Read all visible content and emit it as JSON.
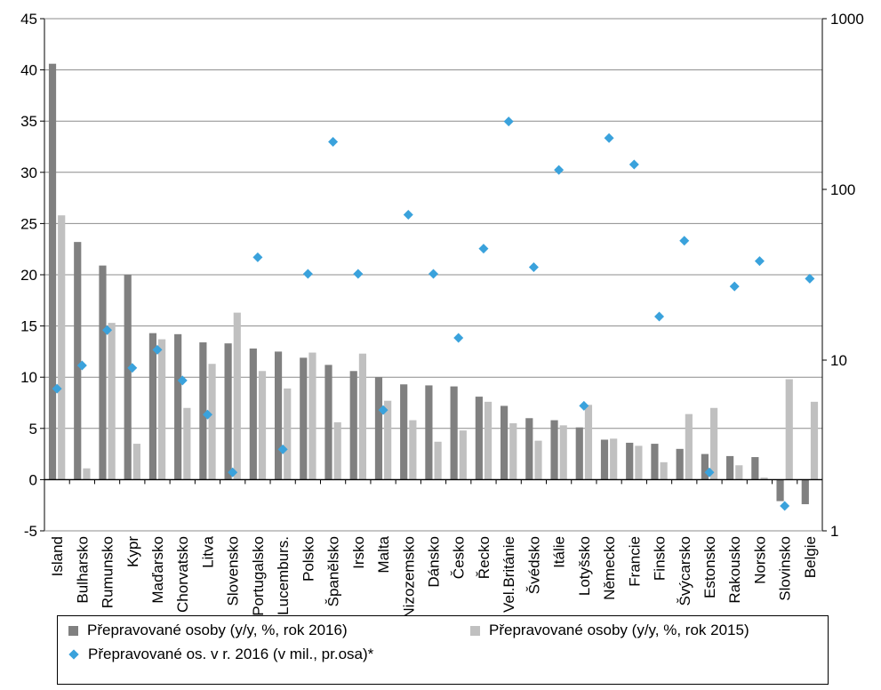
{
  "chart_data": {
    "type": "bar",
    "categories": [
      "Island",
      "Bulharsko",
      "Rumunsko",
      "Kypr",
      "Maďarsko",
      "Chorvatsko",
      "Litva",
      "Slovensko",
      "Portugalsko",
      "Lucemburs.",
      "Polsko",
      "Španělsko",
      "Irsko",
      "Malta",
      "Nizozemsko",
      "Dánsko",
      "Česko",
      "Řecko",
      "Vel.Británie",
      "Švédsko",
      "Itálie",
      "Lotyšsko",
      "Německo",
      "Francie",
      "Finsko",
      "Švýcarsko",
      "Estonsko",
      "Rakousko",
      "Norsko",
      "Slovinsko",
      "Belgie"
    ],
    "series": [
      {
        "name": "Přepravované osoby  (y/y, %, rok 2016)",
        "axis": "left",
        "kind": "bar",
        "color": "#808080",
        "values": [
          40.6,
          23.2,
          20.9,
          20.0,
          14.3,
          14.2,
          13.4,
          13.3,
          12.8,
          12.5,
          11.9,
          11.2,
          10.6,
          10.0,
          9.3,
          9.2,
          9.1,
          8.1,
          7.2,
          6.0,
          5.8,
          5.1,
          3.9,
          3.6,
          3.5,
          3.0,
          2.5,
          2.3,
          2.2,
          -2.1,
          -2.4
        ]
      },
      {
        "name": "Přepravované osoby  (y/y, %, rok 2015)",
        "axis": "left",
        "kind": "bar",
        "color": "#c0c0c0",
        "values": [
          25.8,
          1.1,
          15.3,
          3.5,
          13.7,
          7.0,
          11.3,
          16.3,
          10.6,
          8.9,
          12.4,
          5.6,
          12.3,
          7.7,
          5.8,
          3.7,
          4.8,
          7.6,
          5.5,
          3.8,
          5.3,
          7.3,
          4.0,
          3.3,
          1.7,
          6.4,
          7.0,
          1.4,
          0.2,
          9.8,
          7.6
        ]
      },
      {
        "name": "Přepravované os. v r. 2016 (v mil., pr.osa)*",
        "axis": "right",
        "kind": "marker",
        "color": "#3aa2dc",
        "values": [
          6.8,
          9.3,
          15.0,
          9.0,
          11.5,
          7.6,
          4.8,
          2.2,
          40.0,
          3.0,
          32.0,
          190.0,
          32.0,
          5.1,
          71.0,
          32.0,
          13.5,
          45.0,
          250.0,
          35.0,
          130.0,
          5.4,
          200.0,
          140.0,
          18.0,
          50.0,
          2.2,
          27.0,
          38.0,
          1.4,
          30.0
        ]
      }
    ],
    "y_left": {
      "min": -5,
      "max": 45,
      "ticks": [
        "-5",
        "0",
        "5",
        "10",
        "15",
        "20",
        "25",
        "30",
        "35",
        "40",
        "45"
      ]
    },
    "y_right": {
      "scale": "log",
      "min": 1,
      "max": 1000,
      "ticks": [
        "1",
        "10",
        "100",
        "1000"
      ]
    },
    "grid": "horizontal",
    "legend_placement": "bottom"
  },
  "legend": {
    "item_2016": "Přepravované osoby  (y/y, %, rok 2016)",
    "item_2015": "Přepravované osoby  (y/y, %, rok 2015)",
    "item_marker": "Přepravované os. v r. 2016 (v mil., pr.osa)*"
  }
}
